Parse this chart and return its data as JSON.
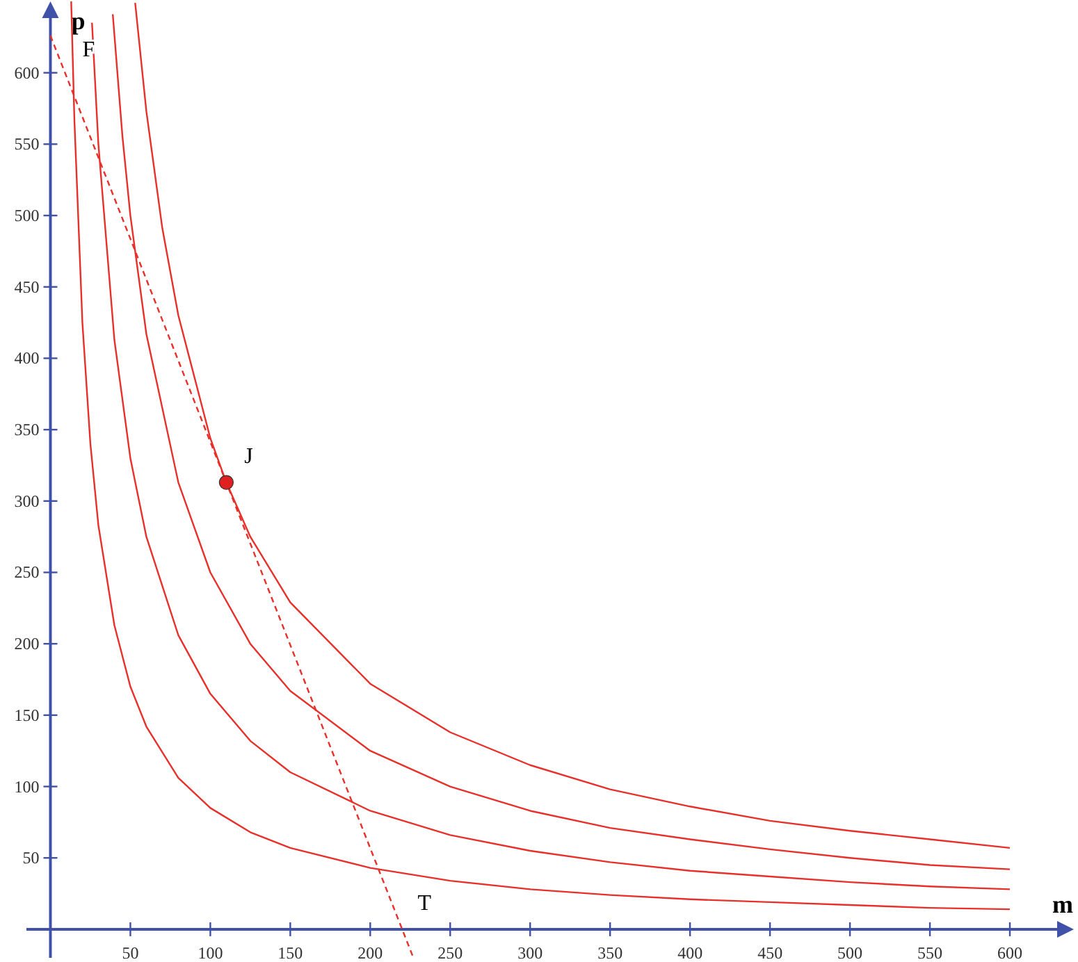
{
  "chart_data": {
    "type": "line",
    "xlabel": "m",
    "ylabel": "p",
    "xlim": [
      -15,
      640
    ],
    "ylim": [
      -20,
      650
    ],
    "xticks": [
      50,
      100,
      150,
      200,
      250,
      300,
      350,
      400,
      450,
      500,
      550,
      600
    ],
    "yticks": [
      50,
      100,
      150,
      200,
      250,
      300,
      350,
      400,
      450,
      500,
      550,
      600
    ],
    "grid": false,
    "series": [
      {
        "type": "line",
        "color": "#e8302a",
        "line_style": "solid",
        "x": [
          13,
          15,
          20,
          25,
          30,
          40,
          50,
          60,
          80,
          100,
          125,
          150,
          200,
          250,
          300,
          350,
          400,
          450,
          500,
          550,
          600
        ],
        "values": [
          650,
          567,
          425,
          340,
          283,
          213,
          170,
          142,
          106,
          85,
          68,
          57,
          43,
          34,
          28,
          24,
          21,
          19,
          17,
          15,
          14
        ]
      },
      {
        "color": "#e8302a",
        "line_style": "solid",
        "x": [
          26,
          30,
          40,
          50,
          60,
          80,
          100,
          125,
          150,
          200,
          250,
          300,
          350,
          400,
          450,
          500,
          550,
          600
        ],
        "values": [
          635,
          550,
          413,
          330,
          275,
          206,
          165,
          132,
          110,
          83,
          66,
          55,
          47,
          41,
          37,
          33,
          30,
          28
        ]
      },
      {
        "type": "line",
        "color": "#e8302a",
        "line_style": "solid",
        "x": [
          39,
          45,
          50,
          60,
          80,
          100,
          125,
          150,
          200,
          250,
          300,
          350,
          400,
          450,
          500,
          550,
          600
        ],
        "values": [
          641,
          556,
          500,
          417,
          313,
          250,
          200,
          167,
          125,
          100,
          83,
          71,
          63,
          56,
          50,
          45,
          42
        ]
      },
      {
        "type": "line",
        "color": "#e8302a",
        "line_style": "solid",
        "x": [
          53,
          60,
          70,
          80,
          100,
          110,
          125,
          150,
          200,
          250,
          300,
          350,
          400,
          450,
          500,
          550,
          600
        ],
        "values": [
          649,
          573,
          491,
          430,
          344,
          313,
          275,
          229,
          172,
          138,
          115,
          98,
          86,
          76,
          69,
          63,
          57
        ]
      },
      {
        "type": "line",
        "color": "#e8302a",
        "line_style": "dashed",
        "x": [
          0,
          227
        ],
        "values": [
          626,
          -20
        ]
      },
      {
        "type": "scatter",
        "color": "#e02020",
        "marker": "circle",
        "x": [
          110
        ],
        "values": [
          313
        ]
      }
    ],
    "ref_lines": [
      {
        "axis": "y",
        "value": 0,
        "color": "#3f51a8"
      }
    ],
    "annotations": [
      {
        "text": "F",
        "x": 10,
        "y": 598
      },
      {
        "text": "J",
        "x": 110,
        "y": 313
      },
      {
        "text": "T",
        "x": 220,
        "y": 0
      }
    ]
  }
}
